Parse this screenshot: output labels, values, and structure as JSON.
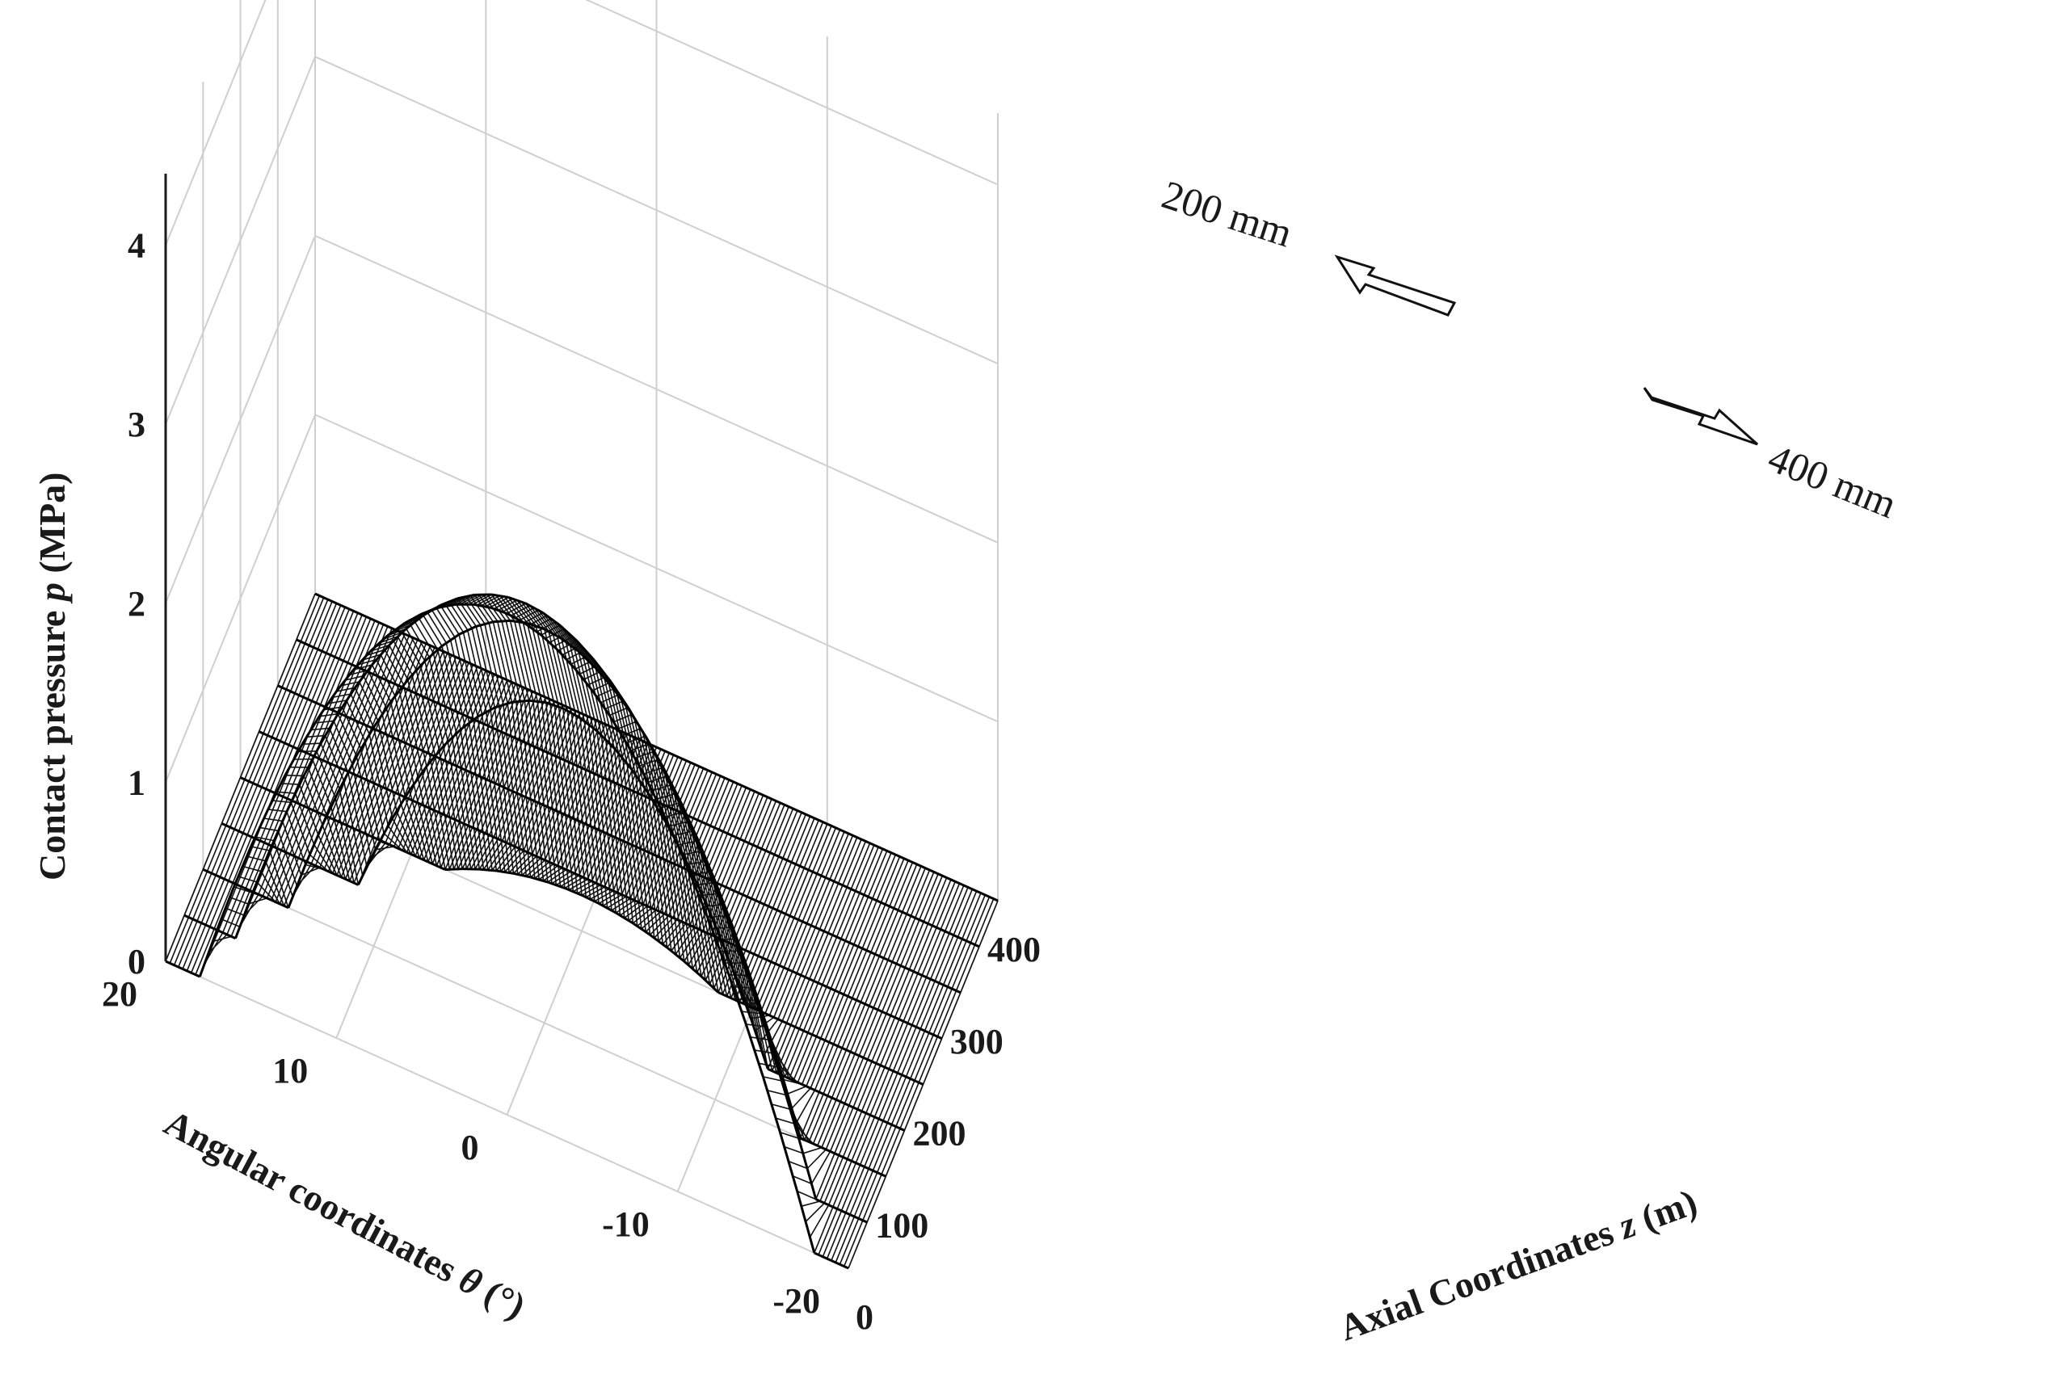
{
  "chart_data": {
    "type": "surface-3d",
    "title": "",
    "xlabel_prefix": "Axial Coordinates ",
    "xlabel_var": "z",
    "xlabel_suffix": " (m)",
    "ylabel_prefix": "Angular coordinates ",
    "ylabel_var": "θ",
    "ylabel_suffix": " (°)",
    "zlabel_prefix": "Contact pressure ",
    "zlabel_var": "p",
    "zlabel_suffix": " (MPa)",
    "xlim": [
      0,
      400
    ],
    "ylim": [
      -20,
      20
    ],
    "zlim": [
      0,
      4
    ],
    "xticks": [
      0,
      100,
      200,
      300,
      400
    ],
    "yticks": [
      20,
      10,
      0,
      -10,
      -20
    ],
    "zticks": [
      0,
      1,
      2,
      3,
      4
    ],
    "grid": true,
    "annotations": [
      {
        "text": "200 mm",
        "direction": "toward-back"
      },
      {
        "text": "400 mm",
        "direction": "toward-right"
      }
    ],
    "series": [
      {
        "z_position": 0,
        "peak_pressure": 2.8,
        "peak_theta": 0,
        "halfwidth": 18
      },
      {
        "z_position": 50,
        "peak_pressure": 2.6,
        "peak_theta": 0,
        "halfwidth": 17
      },
      {
        "z_position": 100,
        "peak_pressure": 2.2,
        "peak_theta": 0,
        "halfwidth": 15
      },
      {
        "z_position": 150,
        "peak_pressure": 1.5,
        "peak_theta": 0,
        "halfwidth": 12
      },
      {
        "z_position": 200,
        "peak_pressure": 0.2,
        "peak_theta": 0,
        "halfwidth": 8
      },
      {
        "z_position": 250,
        "peak_pressure": 0.0,
        "peak_theta": 0,
        "halfwidth": 5
      },
      {
        "z_position": 300,
        "peak_pressure": 0.0,
        "peak_theta": 0,
        "halfwidth": 5
      },
      {
        "z_position": 350,
        "peak_pressure": 0.0,
        "peak_theta": 0,
        "halfwidth": 5
      },
      {
        "z_position": 400,
        "peak_pressure": 0.0,
        "peak_theta": 0,
        "halfwidth": 5
      }
    ]
  }
}
